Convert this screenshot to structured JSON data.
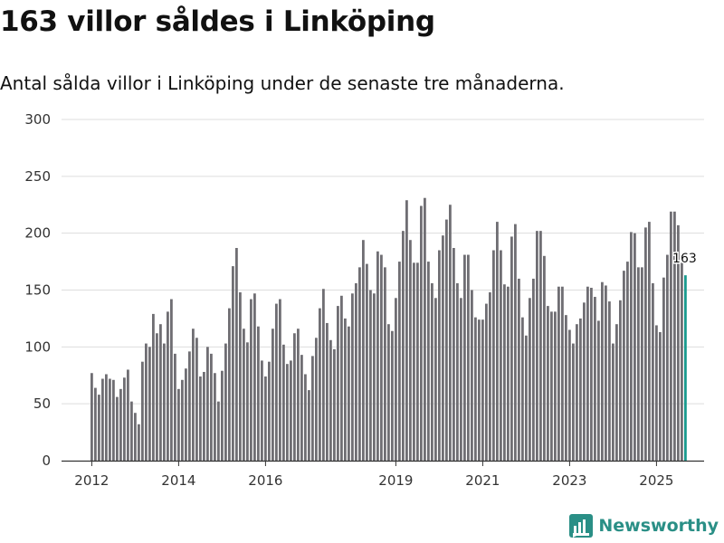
{
  "title": "163 villor såldes i Linköping",
  "subtitle": "Antal sålda villor i Linköping under de senaste tre månaderna.",
  "brand": {
    "name": "Newsworthy",
    "icon": "newsworthy-logo-icon"
  },
  "colors": {
    "bar": "#6f6e73",
    "highlight": "#1a9a8e",
    "grid": "#dddddd",
    "axis": "#333333"
  },
  "chart_data": {
    "type": "bar",
    "title": "163 villor såldes i Linköping",
    "subtitle": "Antal sålda villor i Linköping under de senaste tre månaderna.",
    "xlabel": "",
    "ylabel": "",
    "ylim": [
      0,
      300
    ],
    "yticks": [
      0,
      50,
      100,
      150,
      200,
      250,
      300
    ],
    "xticks": [
      {
        "label": "2012",
        "index": 0
      },
      {
        "label": "2014",
        "index": 24
      },
      {
        "label": "2016",
        "index": 48
      },
      {
        "label": "2019",
        "index": 84
      },
      {
        "label": "2021",
        "index": 108
      },
      {
        "label": "2023",
        "index": 132
      },
      {
        "label": "2025",
        "index": 156
      }
    ],
    "grid": true,
    "first_period": "2012-01",
    "period_length": "three-month rolling window, monthly",
    "values": [
      77,
      64,
      58,
      72,
      76,
      72,
      71,
      56,
      63,
      73,
      80,
      52,
      42,
      32,
      87,
      103,
      100,
      129,
      112,
      120,
      103,
      131,
      142,
      94,
      63,
      71,
      81,
      96,
      116,
      108,
      74,
      78,
      100,
      94,
      77,
      52,
      79,
      103,
      134,
      171,
      187,
      148,
      116,
      104,
      142,
      147,
      118,
      88,
      74,
      87,
      116,
      138,
      142,
      102,
      85,
      88,
      112,
      116,
      93,
      76,
      62,
      92,
      108,
      134,
      151,
      121,
      106,
      98,
      136,
      145,
      125,
      118,
      147,
      156,
      170,
      194,
      173,
      150,
      147,
      184,
      181,
      170,
      120,
      114,
      143,
      175,
      202,
      229,
      194,
      174,
      174,
      224,
      231,
      175,
      156,
      143,
      185,
      198,
      212,
      225,
      187,
      156,
      143,
      181,
      181,
      150,
      126,
      124,
      124,
      138,
      148,
      185,
      210,
      185,
      155,
      153,
      197,
      208,
      160,
      126,
      110,
      143,
      160,
      202,
      202,
      180,
      136,
      131,
      131,
      153,
      153,
      128,
      115,
      103,
      120,
      125,
      139,
      153,
      152,
      144,
      123,
      157,
      154,
      140,
      103,
      120,
      141,
      167,
      175,
      201,
      200,
      170,
      170,
      205,
      210,
      156,
      119,
      113,
      161,
      181,
      219,
      219,
      207,
      174,
      163
    ],
    "highlight_index": 164,
    "highlight_label": "163"
  }
}
